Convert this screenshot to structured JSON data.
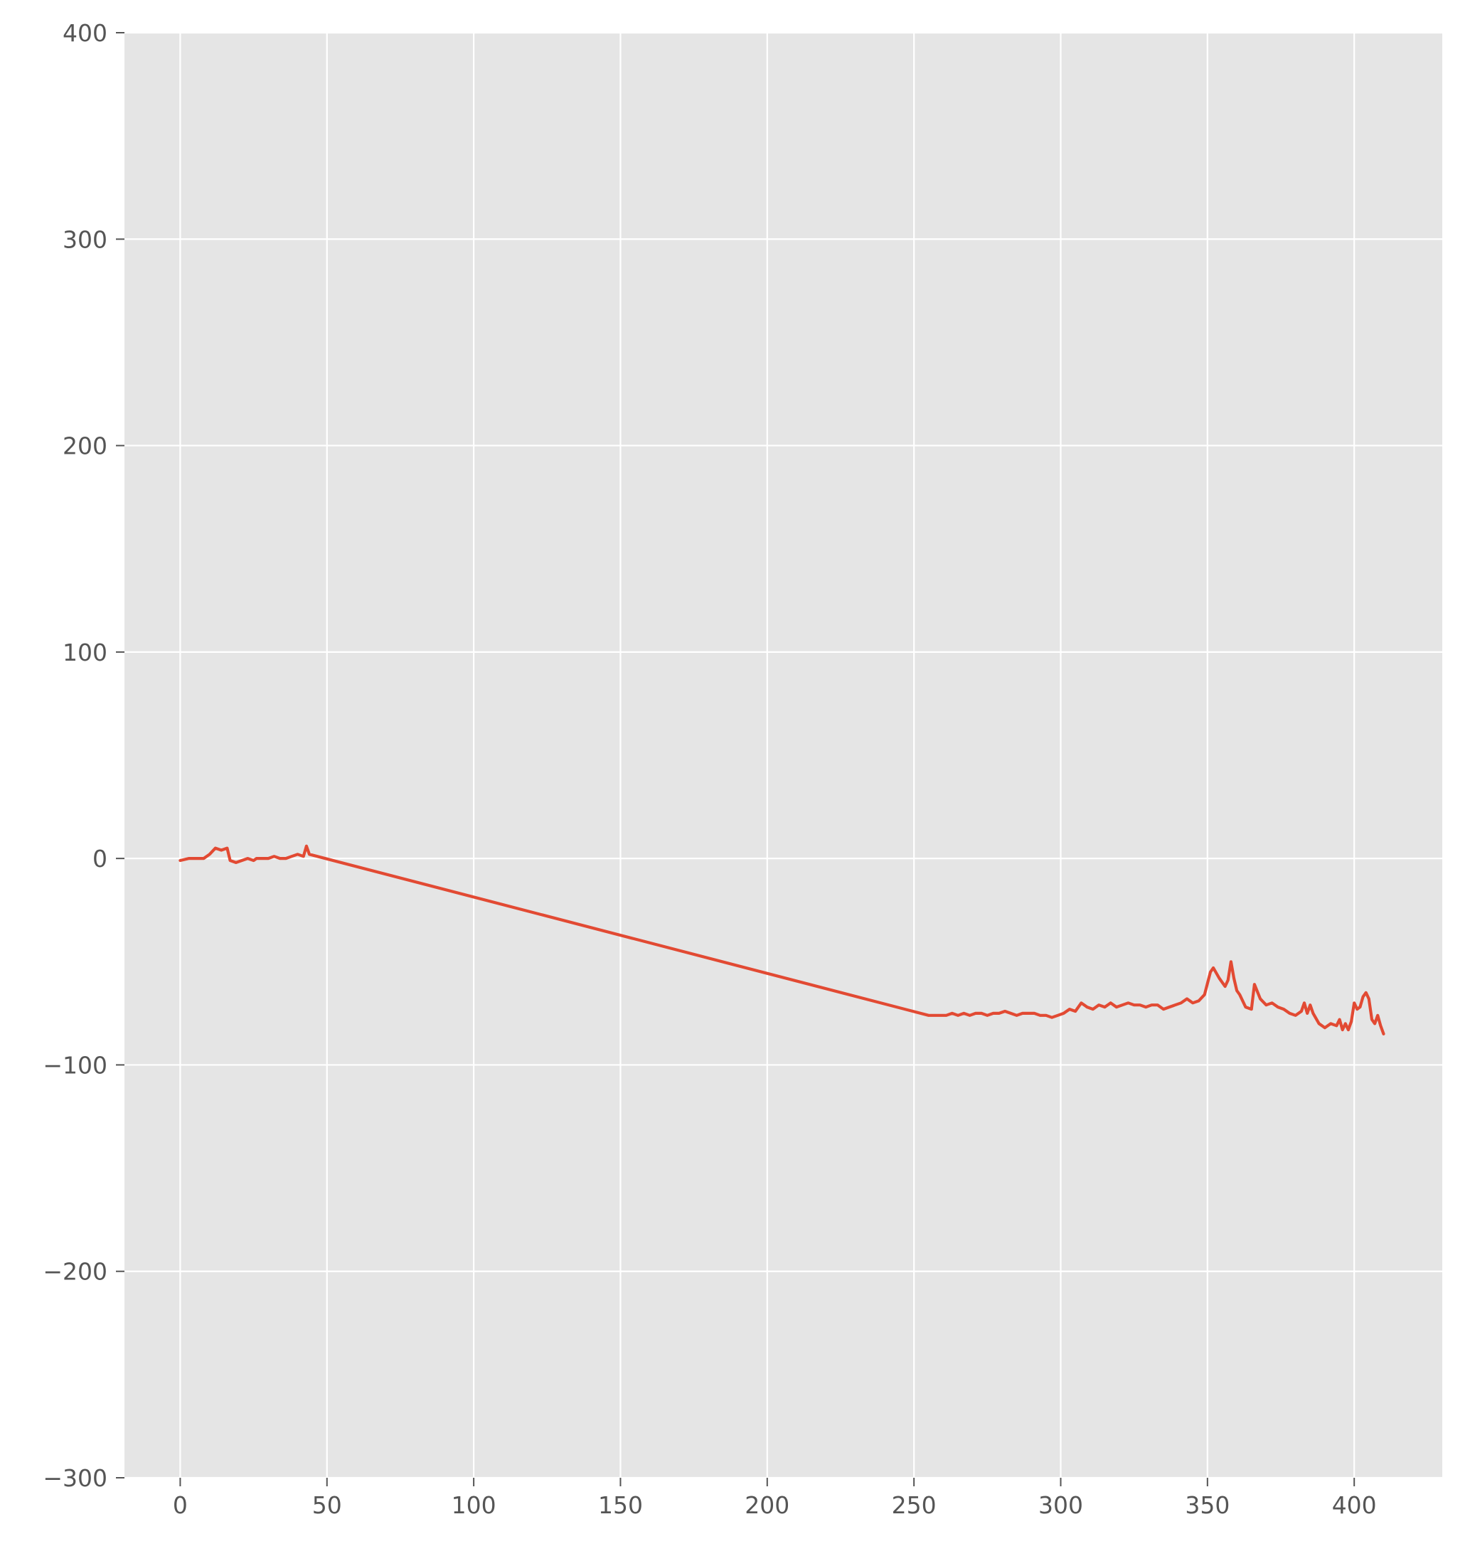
{
  "chart_data": {
    "type": "line",
    "title": "",
    "xlabel": "",
    "ylabel": "",
    "xlim": [
      -19,
      430
    ],
    "ylim": [
      -300,
      400
    ],
    "grid": true,
    "x_ticks": [
      0,
      50,
      100,
      150,
      200,
      250,
      300,
      350,
      400
    ],
    "y_ticks": [
      -300,
      -200,
      -100,
      0,
      100,
      200,
      300,
      400
    ],
    "x_tick_labels": [
      "0",
      "50",
      "100",
      "150",
      "200",
      "250",
      "300",
      "350",
      "400"
    ],
    "y_tick_labels": [
      "−300",
      "−200",
      "−100",
      "0",
      "100",
      "200",
      "300",
      "400"
    ],
    "colors": {
      "background": "#E5E5E5",
      "grid": "#FFFFFF",
      "line": "#E24A33",
      "tick_text": "#555555"
    },
    "series": [
      {
        "color": "#E24A33",
        "x": [
          0,
          3,
          6,
          8,
          10,
          12,
          14,
          16,
          17,
          19,
          21,
          23,
          25,
          26,
          28,
          30,
          32,
          34,
          36,
          38,
          40,
          42,
          43,
          44,
          255,
          258,
          261,
          263,
          265,
          267,
          269,
          271,
          273,
          275,
          277,
          279,
          281,
          283,
          285,
          287,
          289,
          291,
          293,
          295,
          297,
          299,
          301,
          303,
          305,
          307,
          309,
          311,
          313,
          315,
          317,
          319,
          321,
          323,
          325,
          327,
          329,
          331,
          333,
          335,
          337,
          339,
          341,
          343,
          345,
          347,
          349,
          351,
          352,
          354,
          356,
          357,
          358,
          359,
          360,
          361,
          363,
          365,
          366,
          368,
          370,
          372,
          374,
          376,
          378,
          380,
          382,
          383,
          384,
          385,
          386,
          388,
          390,
          392,
          394,
          395,
          396,
          397,
          398,
          399,
          400,
          401,
          402,
          403,
          404,
          405,
          406,
          407,
          408,
          409,
          410
        ],
        "y": [
          -1,
          0,
          0,
          0,
          2,
          5,
          4,
          5,
          -1,
          -2,
          -1,
          0,
          -1,
          0,
          0,
          0,
          1,
          0,
          0,
          1,
          2,
          1,
          6,
          2,
          -76,
          -76,
          -76,
          -75,
          -76,
          -75,
          -76,
          -75,
          -75,
          -76,
          -75,
          -75,
          -74,
          -75,
          -76,
          -75,
          -75,
          -75,
          -76,
          -76,
          -77,
          -76,
          -75,
          -73,
          -74,
          -70,
          -72,
          -73,
          -71,
          -72,
          -70,
          -72,
          -71,
          -70,
          -71,
          -71,
          -72,
          -71,
          -71,
          -73,
          -72,
          -71,
          -70,
          -68,
          -70,
          -69,
          -66,
          -55,
          -53,
          -58,
          -62,
          -59,
          -50,
          -58,
          -64,
          -66,
          -72,
          -73,
          -61,
          -68,
          -71,
          -70,
          -72,
          -73,
          -75,
          -76,
          -74,
          -70,
          -75,
          -71,
          -75,
          -80,
          -82,
          -80,
          -81,
          -78,
          -83,
          -80,
          -83,
          -79,
          -70,
          -73,
          -72,
          -67,
          -65,
          -68,
          -78,
          -80,
          -76,
          -81,
          -85
        ]
      }
    ]
  }
}
